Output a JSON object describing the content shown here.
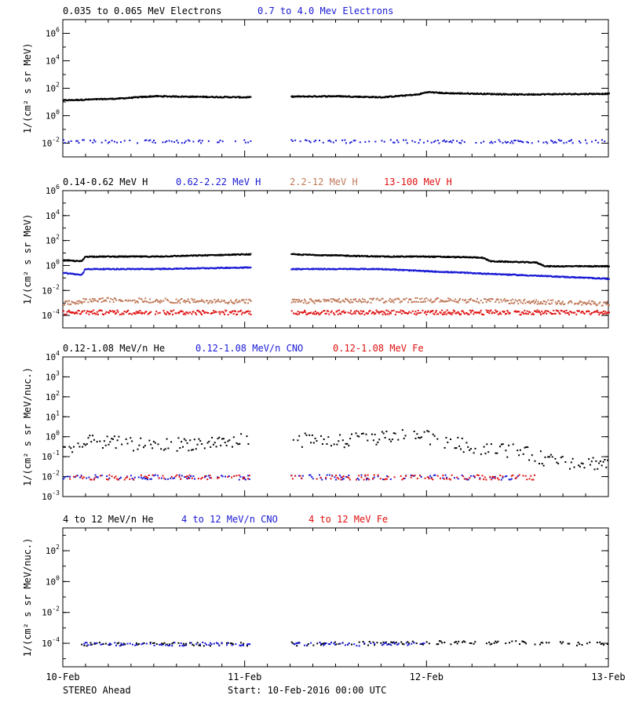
{
  "footer": {
    "spacecraft": "STEREO Ahead",
    "start": "Start: 10-Feb-2016 00:00 UTC"
  },
  "colors": {
    "black": "#000000",
    "blue": "#1a1ad6",
    "tan": "#c07a5a",
    "red": "#e01010"
  },
  "chart_data": [
    {
      "type": "scatter",
      "title": "",
      "xlabel": "",
      "ylabel": "1/(cm² s sr MeV)",
      "ylog": true,
      "ylim": [
        0.001,
        10000000
      ],
      "yticks": [
        {
          "value": 0.01,
          "base": "10",
          "exp": "-2"
        },
        {
          "value": 1,
          "base": "10",
          "exp": "0"
        },
        {
          "value": 100,
          "base": "10",
          "exp": "2"
        },
        {
          "value": 10000,
          "base": "10",
          "exp": "4"
        },
        {
          "value": 1000000,
          "base": "10",
          "exp": "6"
        }
      ],
      "xlim": [
        0,
        3
      ],
      "xtick_labels": [],
      "legend": [
        {
          "text": "0.035 to 0.065 MeV Electrons",
          "color": "black"
        },
        {
          "text": "0.7 to 4.0 Mev Electrons",
          "color": "blue"
        }
      ],
      "series": [
        {
          "name": "0.035 to 0.065 MeV Electrons",
          "color": "black",
          "style": "dense",
          "points": [
            [
              0,
              15
            ],
            [
              0.3,
              20
            ],
            [
              0.5,
              30
            ],
            [
              0.75,
              27
            ],
            [
              1.0,
              25
            ],
            [
              1.25,
              28
            ],
            [
              1.5,
              30
            ],
            [
              1.75,
              25
            ],
            [
              1.95,
              40
            ],
            [
              2.0,
              60
            ],
            [
              2.1,
              50
            ],
            [
              2.5,
              40
            ],
            [
              3.0,
              45
            ]
          ]
        },
        {
          "name": "0.7 to 4.0 Mev Electrons",
          "color": "blue",
          "style": "sparse",
          "points": [
            [
              0,
              0.015
            ],
            [
              1.0,
              0.015
            ],
            [
              1.25,
              0.015
            ],
            [
              3.0,
              0.015
            ]
          ]
        }
      ]
    },
    {
      "type": "scatter",
      "title": "",
      "xlabel": "",
      "ylabel": "1/(cm² s sr MeV)",
      "ylog": true,
      "ylim": [
        1e-05,
        1000000
      ],
      "yticks": [
        {
          "value": 0.0001,
          "base": "10",
          "exp": "-4"
        },
        {
          "value": 0.01,
          "base": "10",
          "exp": "-2"
        },
        {
          "value": 1,
          "base": "10",
          "exp": "0"
        },
        {
          "value": 100,
          "base": "10",
          "exp": "2"
        },
        {
          "value": 10000,
          "base": "10",
          "exp": "4"
        },
        {
          "value": 1000000,
          "base": "10",
          "exp": "6"
        }
      ],
      "xlim": [
        0,
        3
      ],
      "xtick_labels": [],
      "legend": [
        {
          "text": "0.14-0.62 MeV H",
          "color": "black"
        },
        {
          "text": "0.62-2.22 MeV H",
          "color": "blue"
        },
        {
          "text": "2.2-12 MeV H",
          "color": "tan"
        },
        {
          "text": "13-100 MeV H",
          "color": "red"
        }
      ],
      "series": [
        {
          "name": "0.14-0.62 MeV H",
          "color": "black",
          "style": "dense",
          "points": [
            [
              0,
              3
            ],
            [
              0.1,
              2.5
            ],
            [
              0.12,
              6
            ],
            [
              0.5,
              6
            ],
            [
              1.0,
              9
            ],
            [
              1.25,
              9
            ],
            [
              1.75,
              6
            ],
            [
              2.0,
              6
            ],
            [
              2.3,
              5
            ],
            [
              2.35,
              2.5
            ],
            [
              2.6,
              2
            ],
            [
              2.65,
              1
            ],
            [
              3.0,
              1
            ]
          ]
        },
        {
          "name": "0.62-2.22 MeV H",
          "color": "blue",
          "style": "dense",
          "points": [
            [
              0,
              0.3
            ],
            [
              0.1,
              0.2
            ],
            [
              0.12,
              0.6
            ],
            [
              0.5,
              0.6
            ],
            [
              1.0,
              0.8
            ],
            [
              1.25,
              0.6
            ],
            [
              1.75,
              0.6
            ],
            [
              2.0,
              0.4
            ],
            [
              2.5,
              0.2
            ],
            [
              3.0,
              0.1
            ]
          ]
        },
        {
          "name": "2.2-12 MeV H",
          "color": "tan",
          "style": "band",
          "points": [
            [
              0,
              0.001
            ],
            [
              0.15,
              0.002
            ],
            [
              1.0,
              0.0015
            ],
            [
              1.25,
              0.0015
            ],
            [
              2.0,
              0.002
            ],
            [
              2.5,
              0.0015
            ],
            [
              3.0,
              0.001
            ]
          ]
        },
        {
          "name": "13-100 MeV H",
          "color": "red",
          "style": "band",
          "points": [
            [
              0,
              0.0002
            ],
            [
              1.0,
              0.0002
            ],
            [
              1.25,
              0.0002
            ],
            [
              3.0,
              0.0002
            ]
          ]
        }
      ]
    },
    {
      "type": "scatter",
      "title": "",
      "xlabel": "",
      "ylabel": "1/(cm² s sr MeV/nuc.)",
      "ylog": true,
      "ylim": [
        0.001,
        10000
      ],
      "yticks": [
        {
          "value": 0.001,
          "base": "10",
          "exp": "-3"
        },
        {
          "value": 0.01,
          "base": "10",
          "exp": "-2"
        },
        {
          "value": 0.1,
          "base": "10",
          "exp": "-1"
        },
        {
          "value": 1,
          "base": "10",
          "exp": "0"
        },
        {
          "value": 10,
          "base": "10",
          "exp": "1"
        },
        {
          "value": 100,
          "base": "10",
          "exp": "2"
        },
        {
          "value": 1000,
          "base": "10",
          "exp": "3"
        },
        {
          "value": 10000,
          "base": "10",
          "exp": "4"
        }
      ],
      "xlim": [
        0,
        3
      ],
      "xtick_labels": [],
      "legend": [
        {
          "text": "0.12-1.08 MeV/n He",
          "color": "black"
        },
        {
          "text": "0.12-1.08 MeV/n CNO",
          "color": "blue"
        },
        {
          "text": "0.12-1.08 MeV Fe",
          "color": "red"
        }
      ],
      "series": [
        {
          "name": "0.12-1.08 MeV/n He",
          "color": "black",
          "style": "scatter",
          "points": [
            [
              0,
              0.2
            ],
            [
              0.15,
              0.6
            ],
            [
              0.5,
              0.4
            ],
            [
              1.0,
              0.7
            ],
            [
              1.25,
              0.8
            ],
            [
              1.5,
              0.6
            ],
            [
              1.9,
              1.3
            ],
            [
              2.0,
              1.0
            ],
            [
              2.2,
              0.4
            ],
            [
              2.5,
              0.2
            ],
            [
              2.7,
              0.06
            ],
            [
              3.0,
              0.05
            ]
          ]
        },
        {
          "name": "0.12-1.08 MeV/n CNO",
          "color": "blue",
          "style": "sparse",
          "points": [
            [
              0,
              0.01
            ],
            [
              1.0,
              0.01
            ],
            [
              1.25,
              0.01
            ],
            [
              2.5,
              0.01
            ]
          ]
        },
        {
          "name": "0.12-1.08 MeV Fe",
          "color": "red",
          "style": "sparse",
          "points": [
            [
              0,
              0.01
            ],
            [
              1.0,
              0.01
            ],
            [
              1.25,
              0.01
            ],
            [
              2.6,
              0.01
            ]
          ]
        }
      ]
    },
    {
      "type": "scatter",
      "title": "",
      "xlabel": "",
      "ylabel": "1/(cm² s sr MeV/nuc.)",
      "ylog": true,
      "ylim": [
        3e-06,
        3000
      ],
      "yticks": [
        {
          "value": 0.0001,
          "base": "10",
          "exp": "-4"
        },
        {
          "value": 0.01,
          "base": "10",
          "exp": "-2"
        },
        {
          "value": 1,
          "base": "10",
          "exp": "0"
        },
        {
          "value": 100,
          "base": "10",
          "exp": "2"
        }
      ],
      "xlim": [
        0,
        3
      ],
      "xtick_labels": [
        "10-Feb",
        "11-Feb",
        "12-Feb",
        "13-Feb"
      ],
      "legend": [
        {
          "text": "4 to 12 MeV/n He",
          "color": "black"
        },
        {
          "text": "4 to 12 MeV/n CNO",
          "color": "blue"
        },
        {
          "text": "4 to 12 MeV Fe",
          "color": "red"
        }
      ],
      "series": [
        {
          "name": "4 to 12 MeV/n He",
          "color": "black",
          "style": "sparse",
          "points": [
            [
              0.1,
              0.0001
            ],
            [
              1.0,
              0.0001
            ],
            [
              1.25,
              0.0001
            ],
            [
              2.0,
              0.00012
            ],
            [
              2.5,
              0.00012
            ],
            [
              3.0,
              0.0001
            ]
          ]
        },
        {
          "name": "4 to 12 MeV/n CNO",
          "color": "blue",
          "style": "sparse",
          "points": [
            [
              0.1,
              0.0001
            ],
            [
              1.0,
              0.0001
            ],
            [
              1.25,
              0.0001
            ],
            [
              2.0,
              0.0001
            ]
          ]
        }
      ]
    }
  ]
}
